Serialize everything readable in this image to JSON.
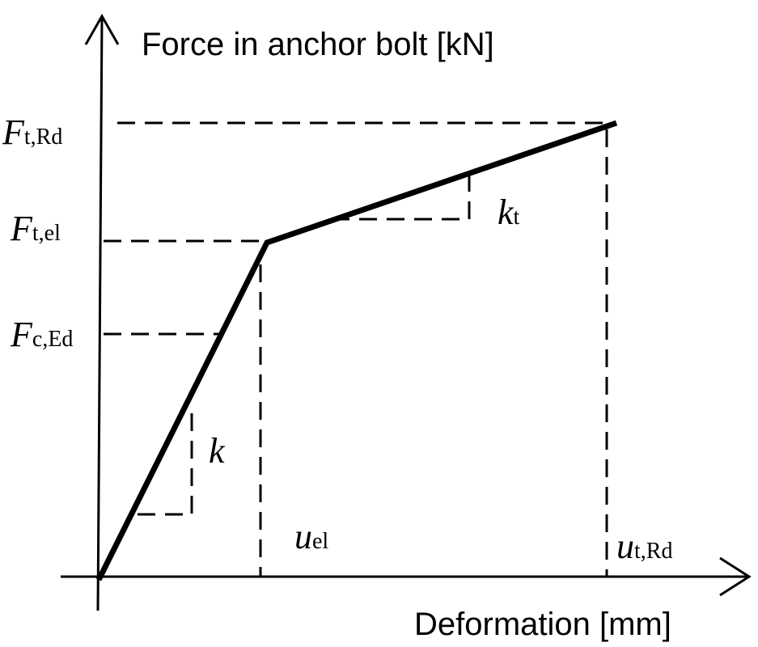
{
  "diagram": {
    "y_axis_label": "Force in anchor bolt [kN]",
    "x_axis_label": "Deformation [mm]",
    "force_levels": [
      {
        "symbol": "F",
        "subscript": "t,Rd"
      },
      {
        "symbol": "F",
        "subscript": "t,el"
      },
      {
        "symbol": "F",
        "subscript": "c,Ed"
      }
    ],
    "deformations": [
      {
        "symbol": "u",
        "subscript": "el"
      },
      {
        "symbol": "u",
        "subscript": "t,Rd"
      }
    ],
    "stiffness_labels": [
      {
        "symbol": "k",
        "subscript": ""
      },
      {
        "symbol": "k",
        "subscript": "t"
      }
    ],
    "line_color": "#000000"
  }
}
